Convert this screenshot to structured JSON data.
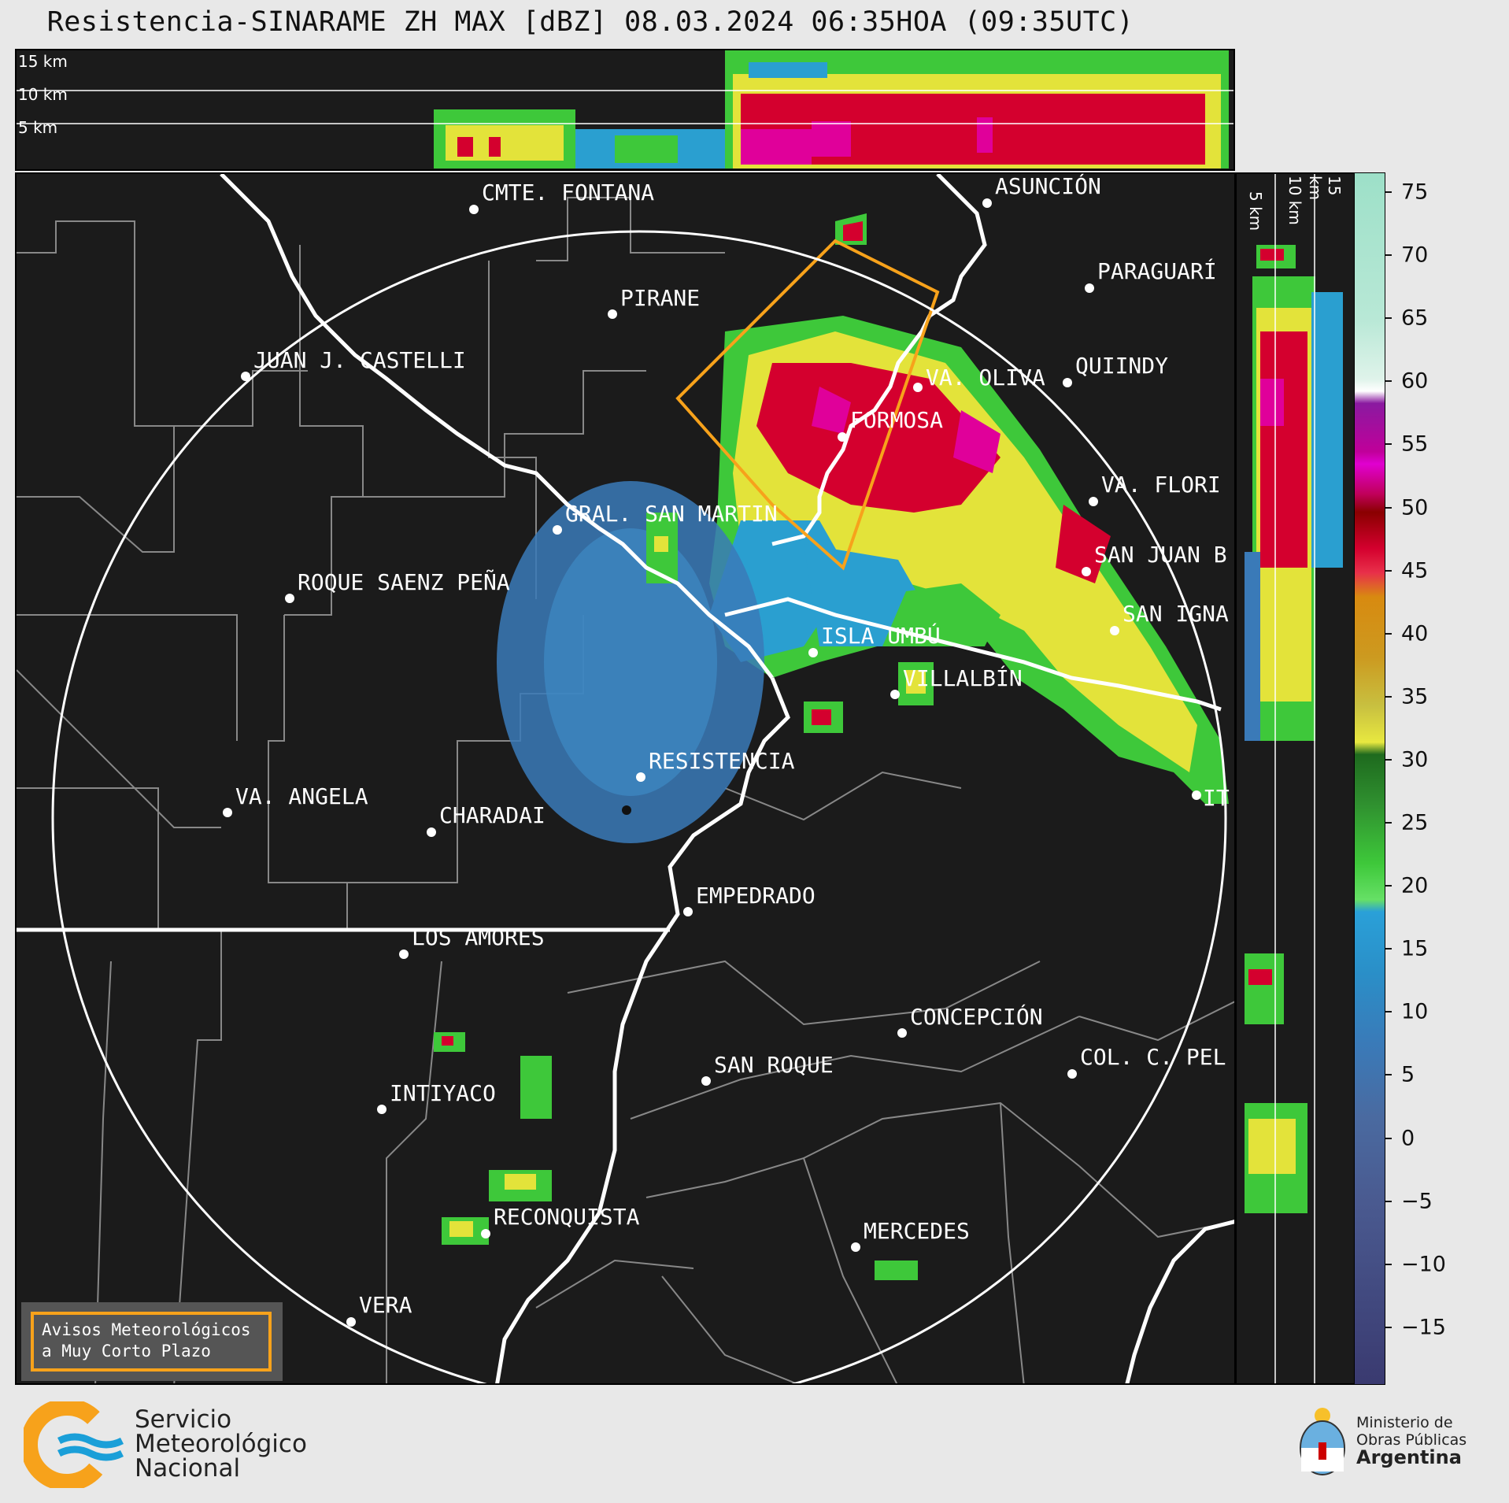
{
  "title": "Resistencia-SINARAME ZH MAX [dBZ] 08.03.2024 06:35HOA (09:35UTC)",
  "top_cross_section": {
    "height_labels": [
      "15 km",
      "10 km",
      "5 km"
    ]
  },
  "side_cross_section": {
    "height_labels": [
      "5 km",
      "10 km",
      "15 km"
    ]
  },
  "colorbar": {
    "unit": "dBZ",
    "ticks": [
      "75",
      "70",
      "65",
      "60",
      "55",
      "50",
      "45",
      "40",
      "35",
      "30",
      "25",
      "20",
      "15",
      "10",
      "5",
      "0",
      "−5",
      "−10",
      "−15"
    ]
  },
  "cities": [
    {
      "name": "CMTE. FONTANA",
      "key": "cmte-fontana"
    },
    {
      "name": "ASUNCIÓN",
      "key": "asuncion"
    },
    {
      "name": "PIRANE",
      "key": "pirane"
    },
    {
      "name": "PARAGUARÍ",
      "key": "paraguari"
    },
    {
      "name": "JUAN J. CASTELLI",
      "key": "juan-j-castelli"
    },
    {
      "name": "VA. OLIVA",
      "key": "va-oliva"
    },
    {
      "name": "QUIINDY",
      "key": "quiindy"
    },
    {
      "name": "FORMOSA",
      "key": "formosa"
    },
    {
      "name": "VA. FLORI",
      "key": "va-florida"
    },
    {
      "name": "GRAL. SAN MARTIN",
      "key": "gral-san-martin"
    },
    {
      "name": "SAN JUAN B",
      "key": "san-juan-b"
    },
    {
      "name": "ROQUE SAENZ PEÑA",
      "key": "roque-saenz-pena"
    },
    {
      "name": "SAN IGNA",
      "key": "san-ignacio"
    },
    {
      "name": "ISLA UMBÚ",
      "key": "isla-umbu"
    },
    {
      "name": "VILLALBÍN",
      "key": "villalbin"
    },
    {
      "name": "RESISTENCIA",
      "key": "resistencia"
    },
    {
      "name": "VA. ANGELA",
      "key": "va-angela"
    },
    {
      "name": "CHARADAI",
      "key": "charadai"
    },
    {
      "name": "IT",
      "key": "ita-ibate"
    },
    {
      "name": "EMPEDRADO",
      "key": "empedrado"
    },
    {
      "name": "LOS AMORES",
      "key": "los-amores"
    },
    {
      "name": "CONCEPCIÓN",
      "key": "concepcion"
    },
    {
      "name": "SAN ROQUE",
      "key": "san-roque"
    },
    {
      "name": "COL. C. PEL",
      "key": "col-c-pellegrini"
    },
    {
      "name": "INTIYACO",
      "key": "intiyaco"
    },
    {
      "name": "RECONQUISTA",
      "key": "reconquista"
    },
    {
      "name": "MERCEDES",
      "key": "mercedes"
    },
    {
      "name": "VERA",
      "key": "vera"
    }
  ],
  "warning_box": {
    "line1": "Avisos Meteorológicos",
    "line2": "a Muy Corto Plazo"
  },
  "logo_smn": {
    "line1": "Servicio",
    "line2": "Meteorológico",
    "line3": "Nacional"
  },
  "logo_ministry": {
    "line1": "Ministerio de",
    "line2": "Obras Públicas",
    "line3": "Argentina"
  },
  "colors": {
    "warning_polygon": "#f7a21b",
    "range_ring": "#ffffff",
    "background": "#1b1b1b"
  }
}
